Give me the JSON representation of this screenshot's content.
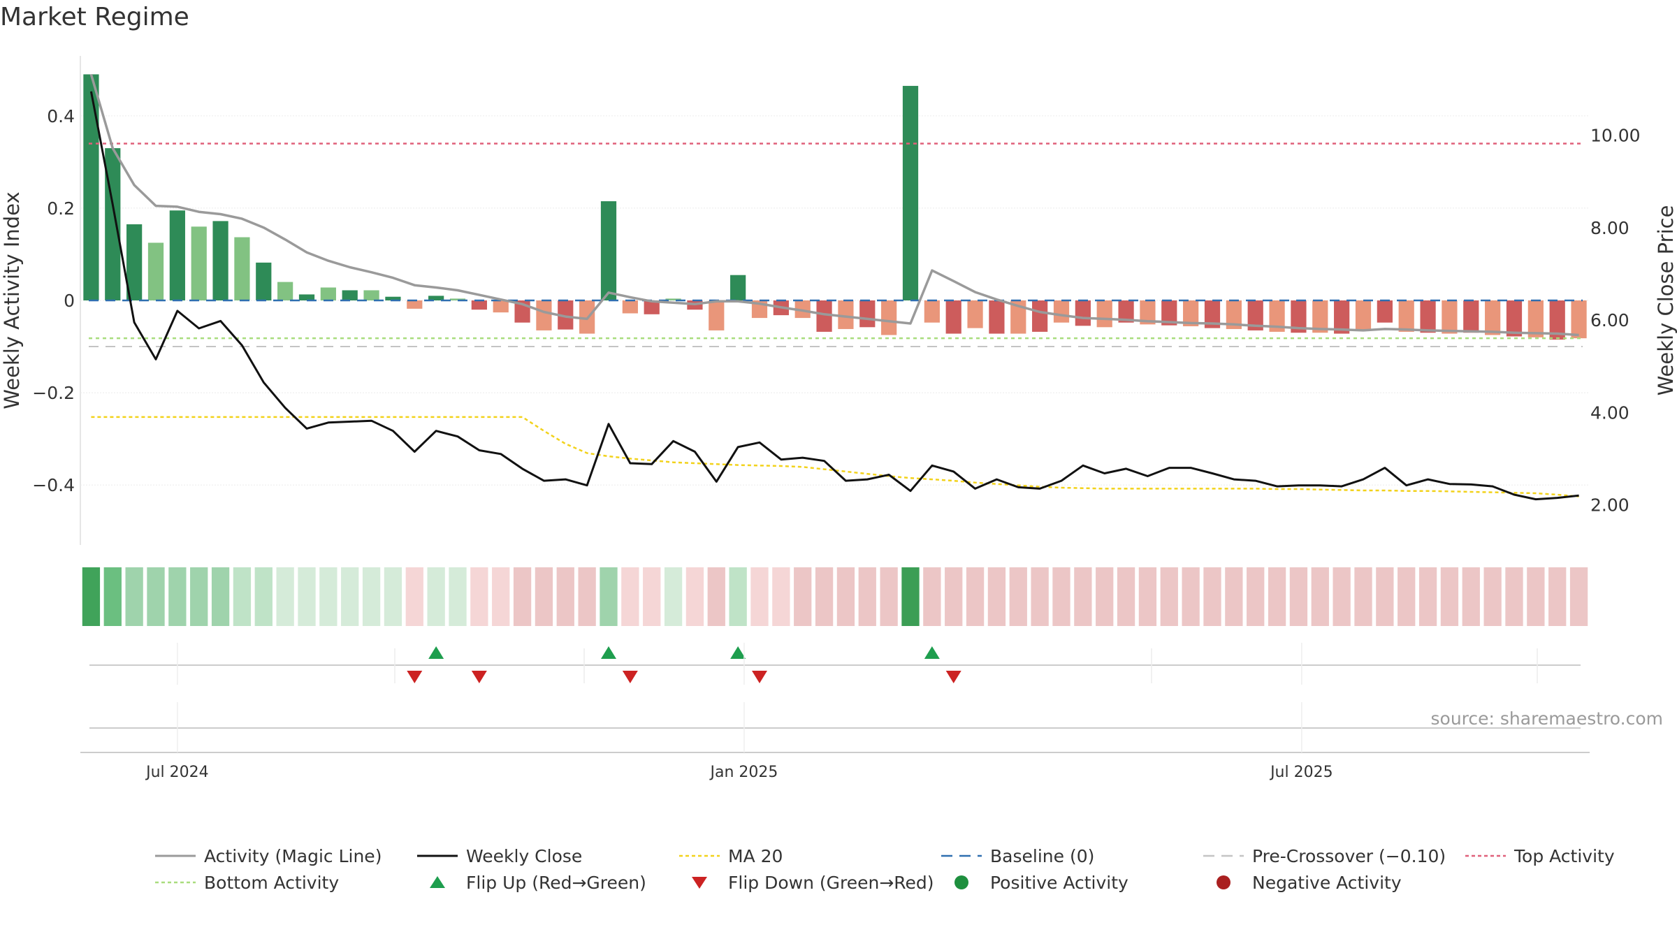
{
  "title": "Market Regime",
  "source_note": "source: sharemaestro.com",
  "colors": {
    "activity_line": "#9a9a9a",
    "weekly_close": "#111111",
    "ma20": "#f2d21b",
    "baseline": "#2f6fb0",
    "pre_crossover": "#c4c4c4",
    "top_activity": "#e0607a",
    "bottom_activity": "#a9dd7e",
    "flip_up": "#1e9e4e",
    "flip_down": "#cc2222",
    "positive_activity": "#1e8f3e",
    "negative_activity": "#aa2020",
    "bar_pos_strong": "#2e8b57",
    "bar_pos_light": "#82c282",
    "bar_neg_strong": "#cd5c5c",
    "bar_neg_light": "#e9967a"
  },
  "chart_data": {
    "type": "bar",
    "x_axis": {
      "ticks": [
        {
          "date": "2024-07-01",
          "label": "Jul 2024"
        },
        {
          "date": "2025-01-01",
          "label": "Jan 2025"
        },
        {
          "date": "2025-07-01",
          "label": "Jul 2025"
        }
      ]
    },
    "y_left": {
      "label": "Weekly Activity Index",
      "lim": [
        -0.53,
        0.53
      ],
      "ticks": [
        {
          "v": 0.4,
          "label": "0.4"
        },
        {
          "v": 0.2,
          "label": "0.2"
        },
        {
          "v": 0,
          "label": "0"
        },
        {
          "v": -0.2,
          "label": "−0.2"
        },
        {
          "v": -0.4,
          "label": "−0.4"
        }
      ]
    },
    "y_right": {
      "label": "Weekly Close Price",
      "lim": [
        1.13,
        11.72
      ],
      "ticks": [
        {
          "v": 10,
          "label": "10.00"
        },
        {
          "v": 8,
          "label": "8.00"
        },
        {
          "v": 6,
          "label": "6.00"
        },
        {
          "v": 4,
          "label": "4.00"
        },
        {
          "v": 2,
          "label": "2.00"
        }
      ]
    },
    "dates": [
      "2024-06-03",
      "2024-06-10",
      "2024-06-17",
      "2024-06-24",
      "2024-07-01",
      "2024-07-08",
      "2024-07-15",
      "2024-07-22",
      "2024-07-29",
      "2024-08-05",
      "2024-08-12",
      "2024-08-19",
      "2024-08-26",
      "2024-09-02",
      "2024-09-09",
      "2024-09-16",
      "2024-09-23",
      "2024-09-30",
      "2024-10-07",
      "2024-10-14",
      "2024-10-21",
      "2024-10-28",
      "2024-11-04",
      "2024-11-11",
      "2024-11-18",
      "2024-11-25",
      "2024-12-02",
      "2024-12-09",
      "2024-12-16",
      "2024-12-23",
      "2024-12-30",
      "2025-01-06",
      "2025-01-13",
      "2025-01-20",
      "2025-01-27",
      "2025-02-03",
      "2025-02-10",
      "2025-02-17",
      "2025-02-24",
      "2025-03-03",
      "2025-03-10",
      "2025-03-17",
      "2025-03-24",
      "2025-03-31",
      "2025-04-07",
      "2025-04-14",
      "2025-04-21",
      "2025-04-28",
      "2025-05-05",
      "2025-05-12",
      "2025-05-19",
      "2025-05-26",
      "2025-06-02",
      "2025-06-09",
      "2025-06-16",
      "2025-06-23",
      "2025-06-30",
      "2025-07-07",
      "2025-07-14",
      "2025-07-21",
      "2025-07-28",
      "2025-08-04",
      "2025-08-11",
      "2025-08-18",
      "2025-08-25",
      "2025-09-01",
      "2025-09-08",
      "2025-09-15",
      "2025-09-22",
      "2025-09-29"
    ],
    "series": [
      {
        "name": "Activity (Magic Line)",
        "axis": "left",
        "values": [
          0.49,
          0.33,
          0.25,
          0.205,
          0.203,
          0.192,
          0.187,
          0.177,
          0.158,
          0.132,
          0.104,
          0.086,
          0.072,
          0.061,
          0.049,
          0.033,
          0.028,
          0.022,
          0.012,
          0.002,
          -0.008,
          -0.025,
          -0.035,
          -0.04,
          0.017,
          0.007,
          -0.002,
          -0.005,
          -0.008,
          -0.002,
          -0.002,
          -0.007,
          -0.015,
          -0.022,
          -0.03,
          -0.035,
          -0.04,
          -0.045,
          -0.05,
          0.065,
          0.042,
          0.018,
          0.002,
          -0.012,
          -0.025,
          -0.032,
          -0.038,
          -0.04,
          -0.042,
          -0.045,
          -0.047,
          -0.049,
          -0.05,
          -0.052,
          -0.055,
          -0.057,
          -0.06,
          -0.062,
          -0.063,
          -0.065,
          -0.062,
          -0.063,
          -0.065,
          -0.066,
          -0.067,
          -0.068,
          -0.07,
          -0.071,
          -0.072,
          -0.075
        ]
      },
      {
        "name": "Weekly Activity Index",
        "type": "bar",
        "axis": "left",
        "values": [
          0.49,
          0.33,
          0.165,
          0.125,
          0.195,
          0.16,
          0.172,
          0.137,
          0.082,
          0.04,
          0.013,
          0.028,
          0.022,
          0.022,
          0.008,
          -0.018,
          0.01,
          0.004,
          -0.02,
          -0.026,
          -0.048,
          -0.065,
          -0.063,
          -0.072,
          0.215,
          -0.028,
          -0.03,
          0.004,
          -0.02,
          -0.065,
          0.055,
          -0.038,
          -0.032,
          -0.038,
          -0.068,
          -0.062,
          -0.058,
          -0.075,
          0.465,
          -0.048,
          -0.072,
          -0.06,
          -0.072,
          -0.072,
          -0.068,
          -0.048,
          -0.055,
          -0.058,
          -0.048,
          -0.052,
          -0.054,
          -0.056,
          -0.06,
          -0.062,
          -0.065,
          -0.068,
          -0.07,
          -0.07,
          -0.072,
          -0.065,
          -0.048,
          -0.068,
          -0.07,
          -0.072,
          -0.07,
          -0.075,
          -0.078,
          -0.08,
          -0.085,
          -0.082
        ]
      },
      {
        "name": "Weekly Close",
        "axis": "right",
        "values": [
          10.95,
          8.5,
          5.95,
          5.15,
          6.2,
          5.82,
          5.98,
          5.45,
          4.65,
          4.1,
          3.65,
          3.78,
          3.8,
          3.82,
          3.6,
          3.15,
          3.6,
          3.48,
          3.18,
          3.1,
          2.78,
          2.52,
          2.55,
          2.42,
          3.75,
          2.9,
          2.88,
          3.38,
          3.15,
          2.5,
          3.25,
          3.35,
          2.98,
          3.02,
          2.95,
          2.52,
          2.55,
          2.65,
          2.3,
          2.85,
          2.72,
          2.35,
          2.55,
          2.38,
          2.35,
          2.52,
          2.85,
          2.68,
          2.78,
          2.62,
          2.8,
          2.8,
          2.68,
          2.55,
          2.52,
          2.4,
          2.42,
          2.42,
          2.4,
          2.55,
          2.8,
          2.42,
          2.55,
          2.45,
          2.44,
          2.4,
          2.22,
          2.12,
          2.15,
          2.2
        ]
      },
      {
        "name": "MA 20",
        "axis": "right",
        "values": [
          3.9,
          3.9,
          3.9,
          3.9,
          3.9,
          3.9,
          3.9,
          3.9,
          3.9,
          3.9,
          3.9,
          3.9,
          3.9,
          3.9,
          3.9,
          3.9,
          3.9,
          3.9,
          3.9,
          3.9,
          3.9,
          3.6,
          3.32,
          3.12,
          3.05,
          3.0,
          2.96,
          2.92,
          2.9,
          2.88,
          2.86,
          2.85,
          2.84,
          2.82,
          2.77,
          2.72,
          2.67,
          2.62,
          2.58,
          2.55,
          2.52,
          2.48,
          2.45,
          2.42,
          2.39,
          2.37,
          2.36,
          2.35,
          2.35,
          2.35,
          2.35,
          2.35,
          2.35,
          2.35,
          2.35,
          2.34,
          2.34,
          2.33,
          2.32,
          2.31,
          2.31,
          2.3,
          2.3,
          2.29,
          2.28,
          2.27,
          2.26,
          2.25,
          2.22,
          2.18
        ]
      }
    ],
    "reference_lines": [
      {
        "name": "Baseline (0)",
        "axis": "left",
        "value": 0
      },
      {
        "name": "Pre-Crossover (−0.10)",
        "axis": "left",
        "value": -0.1
      },
      {
        "name": "Top Activity",
        "axis": "left",
        "value": 0.34
      },
      {
        "name": "Bottom Activity",
        "axis": "left",
        "value": -0.082
      }
    ],
    "regime_strip": [
      4,
      3,
      2,
      2,
      2,
      2,
      2,
      1,
      1,
      0,
      0,
      0,
      0,
      0,
      0,
      -1,
      0,
      0,
      -1,
      -1,
      -2,
      -2,
      -2,
      -2,
      2,
      -1,
      -1,
      0,
      -1,
      -2,
      1,
      -1,
      -1,
      -2,
      -2,
      -2,
      -2,
      -2,
      5,
      -2,
      -2,
      -2,
      -2,
      -2,
      -2,
      -2,
      -2,
      -2,
      -2,
      -2,
      -2,
      -2,
      -2,
      -2,
      -2,
      -2,
      -2,
      -2,
      -2,
      -2,
      -2,
      -2,
      -2,
      -2,
      -2,
      -2,
      -2,
      -2,
      -2,
      -2
    ],
    "flip_up_weeks": [
      16,
      24,
      30,
      39
    ],
    "flip_down_weeks": [
      15,
      18,
      25,
      31,
      40
    ],
    "legend": [
      {
        "label": "Activity (Magic Line)",
        "kind": "line-solid",
        "color_key": "activity_line"
      },
      {
        "label": "Weekly Close",
        "kind": "line-solid",
        "color_key": "weekly_close"
      },
      {
        "label": "MA 20",
        "kind": "line-dotted",
        "color_key": "ma20"
      },
      {
        "label": "Baseline (0)",
        "kind": "line-dashed",
        "color_key": "baseline"
      },
      {
        "label": "Pre-Crossover (−0.10)",
        "kind": "line-dashed",
        "color_key": "pre_crossover"
      },
      {
        "label": "Top Activity",
        "kind": "line-dotted",
        "color_key": "top_activity"
      },
      {
        "label": "Bottom Activity",
        "kind": "line-dotted",
        "color_key": "bottom_activity"
      },
      {
        "label": "Flip Up (Red→Green)",
        "kind": "triangle-up",
        "color_key": "flip_up"
      },
      {
        "label": "Flip Down (Green→Red)",
        "kind": "triangle-down",
        "color_key": "flip_down"
      },
      {
        "label": "Positive Activity",
        "kind": "dot",
        "color_key": "positive_activity"
      },
      {
        "label": "Negative Activity",
        "kind": "dot",
        "color_key": "negative_activity"
      }
    ]
  }
}
